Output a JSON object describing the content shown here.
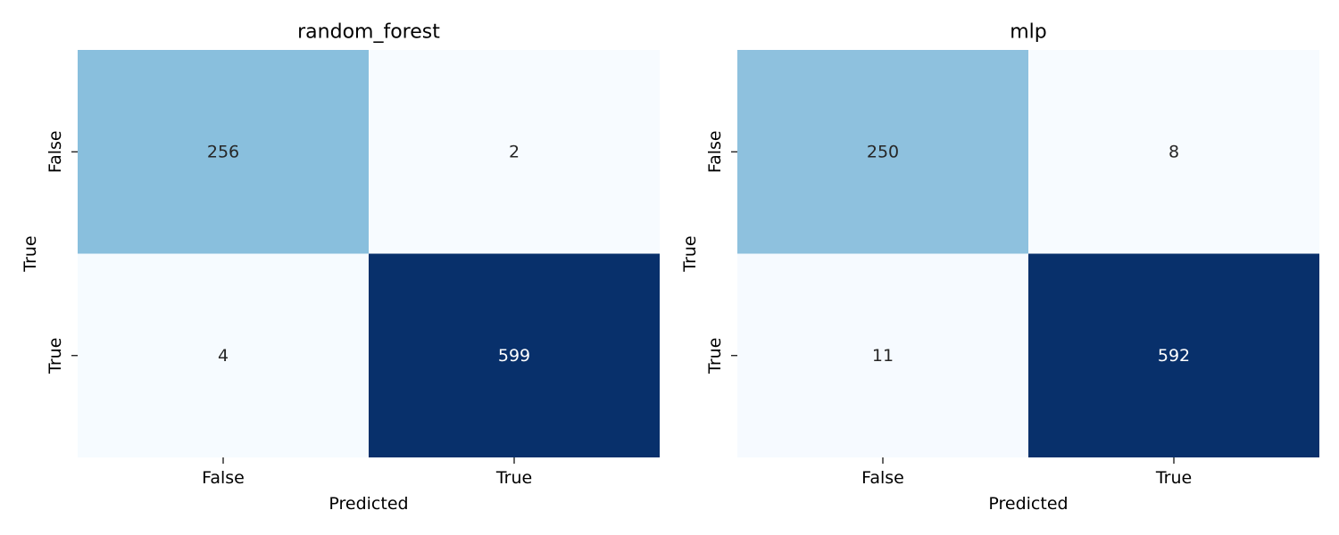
{
  "chart_data": [
    {
      "type": "heatmap",
      "title": "random_forest",
      "xlabel": "Predicted",
      "ylabel": "True",
      "x_categories": [
        "False",
        "True"
      ],
      "y_categories": [
        "False",
        "True"
      ],
      "values": [
        [
          256,
          2
        ],
        [
          4,
          599
        ]
      ],
      "colormap": "Blues",
      "colorbar": false
    },
    {
      "type": "heatmap",
      "title": "mlp",
      "xlabel": "Predicted",
      "ylabel": "True",
      "x_categories": [
        "False",
        "True"
      ],
      "y_categories": [
        "False",
        "True"
      ],
      "values": [
        [
          250,
          8
        ],
        [
          11,
          592
        ]
      ],
      "colormap": "Blues",
      "colorbar": false
    }
  ],
  "colors": {
    "low": "#f7fbff",
    "high": "#08306b",
    "text_dark": "#262626",
    "text_light": "#ffffff"
  }
}
